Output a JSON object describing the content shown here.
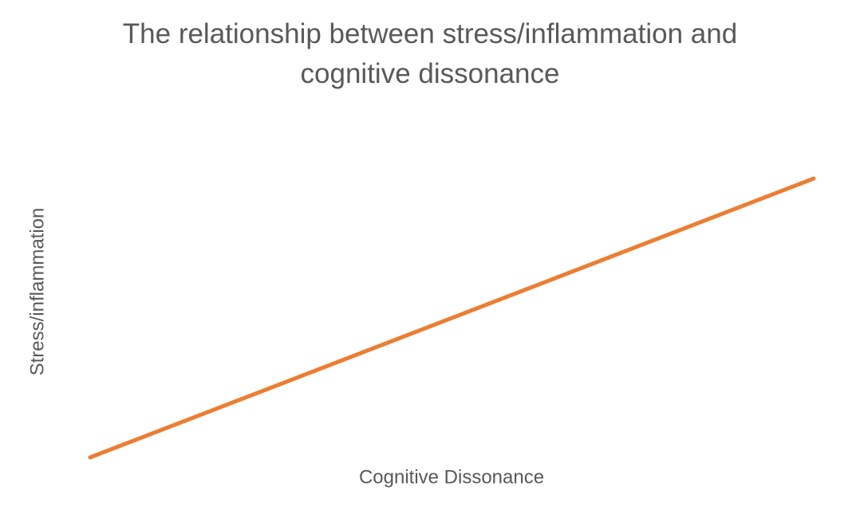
{
  "chart_data": {
    "type": "line",
    "title": "The relationship between stress/inflammation and cognitive dissonance",
    "x_label": "Cognitive Dissonance",
    "y_label": "Stress/inflammation",
    "x": [
      0,
      1
    ],
    "values": [
      0,
      1
    ],
    "xlim": [
      0,
      1
    ],
    "ylim": [
      0,
      1
    ],
    "color": "#ed7d31"
  }
}
